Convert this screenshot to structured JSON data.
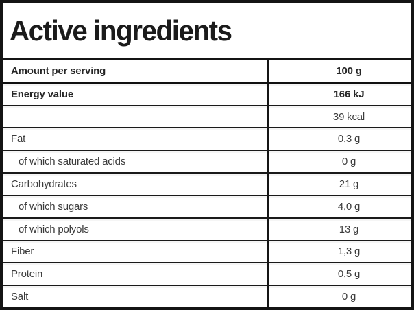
{
  "title": "Active ingredients",
  "table": {
    "header": {
      "label": "Amount per serving",
      "value": "100 g"
    },
    "rows": [
      {
        "label": "Energy value",
        "value": "166 kJ"
      },
      {
        "label": "",
        "value": "39 kcal"
      },
      {
        "label": "Fat",
        "value": "0,3 g"
      },
      {
        "label": "of which saturated acids",
        "value": "0 g"
      },
      {
        "label": "Carbohydrates",
        "value": "21 g"
      },
      {
        "label": "of which sugars",
        "value": "4,0 g"
      },
      {
        "label": "of which polyols",
        "value": "13 g"
      },
      {
        "label": "Fiber",
        "value": "1,3 g"
      },
      {
        "label": "Protein",
        "value": "0,5 g"
      },
      {
        "label": "Salt",
        "value": "0 g"
      }
    ]
  },
  "colors": {
    "border": "#141414",
    "text": "#3c3c3c",
    "text_bold": "#262626",
    "background": "#ffffff"
  }
}
